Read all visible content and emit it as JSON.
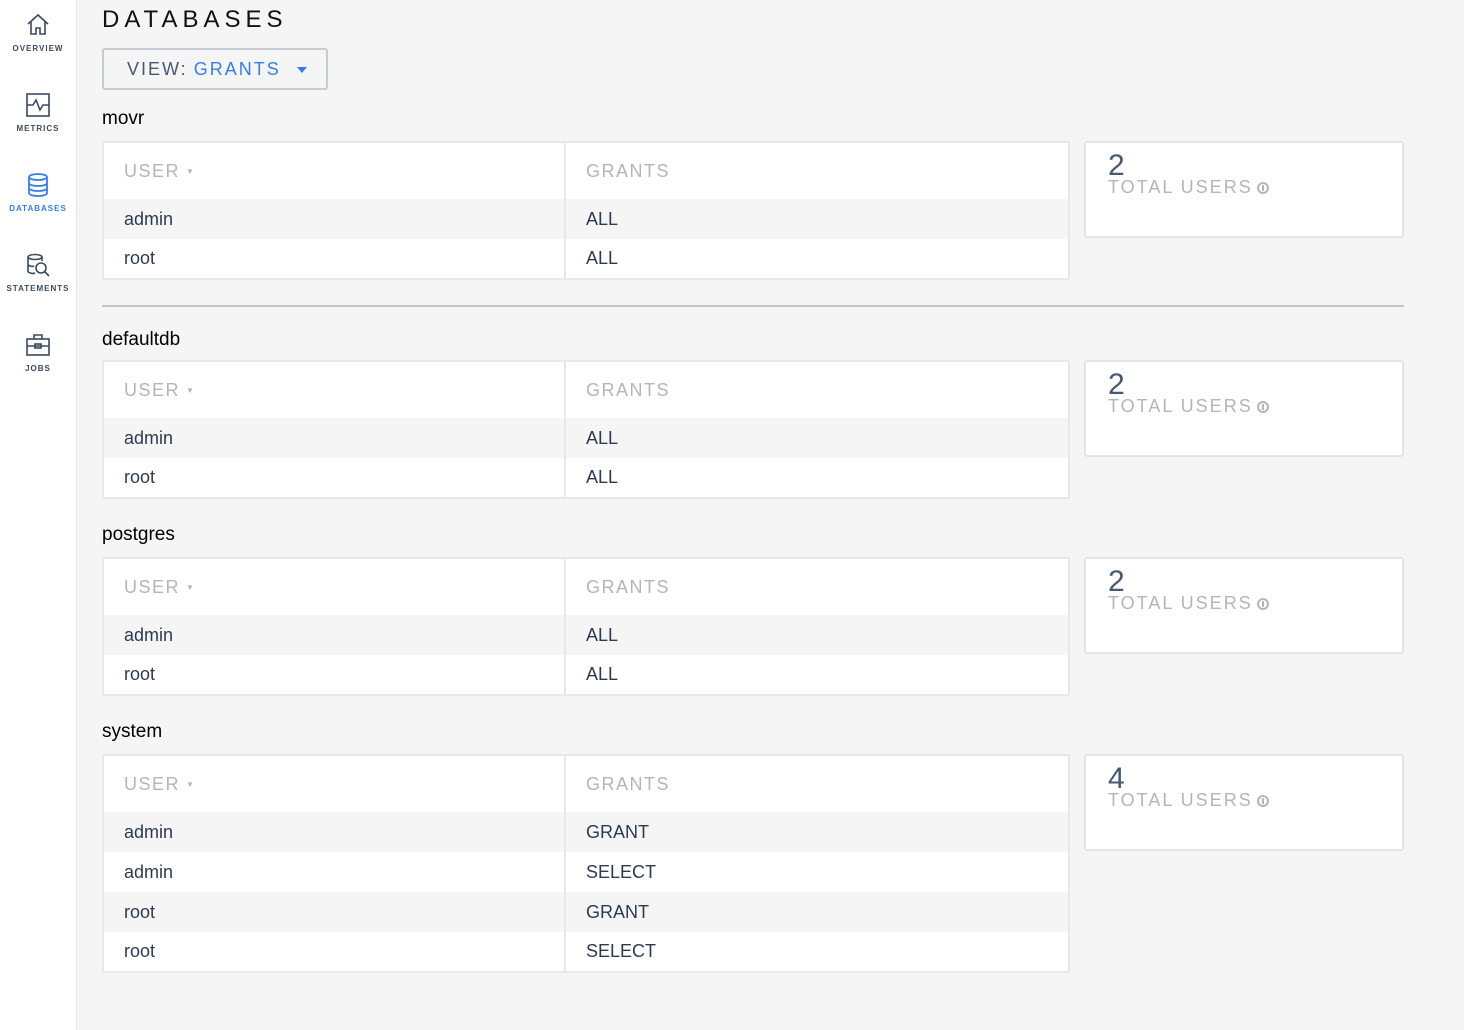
{
  "sidebar": {
    "items": [
      {
        "label": "OVERVIEW",
        "icon": "home-icon",
        "active": false
      },
      {
        "label": "METRICS",
        "icon": "metrics-icon",
        "active": false
      },
      {
        "label": "DATABASES",
        "icon": "database-icon",
        "active": true
      },
      {
        "label": "STATEMENTS",
        "icon": "statements-icon",
        "active": false
      },
      {
        "label": "JOBS",
        "icon": "jobs-icon",
        "active": false
      }
    ]
  },
  "colors": {
    "accent": "#3a7de1",
    "text": "#2d3b50",
    "muted": "#b5b5b5"
  },
  "page": {
    "title": "DATABASES",
    "view_label": "VIEW:",
    "view_value": "GRANTS"
  },
  "columns": {
    "user": "USER",
    "grants": "GRANTS"
  },
  "stat_label": "TOTAL USERS",
  "databases": [
    {
      "name": "movr",
      "total_users": "2",
      "rows": [
        [
          "admin",
          "ALL"
        ],
        [
          "root",
          "ALL"
        ]
      ]
    },
    {
      "name": "defaultdb",
      "total_users": "2",
      "rows": [
        [
          "admin",
          "ALL"
        ],
        [
          "root",
          "ALL"
        ]
      ]
    },
    {
      "name": "postgres",
      "total_users": "2",
      "rows": [
        [
          "admin",
          "ALL"
        ],
        [
          "root",
          "ALL"
        ]
      ]
    },
    {
      "name": "system",
      "total_users": "4",
      "rows": [
        [
          "admin",
          "GRANT"
        ],
        [
          "admin",
          "SELECT"
        ],
        [
          "root",
          "GRANT"
        ],
        [
          "root",
          "SELECT"
        ]
      ]
    }
  ]
}
